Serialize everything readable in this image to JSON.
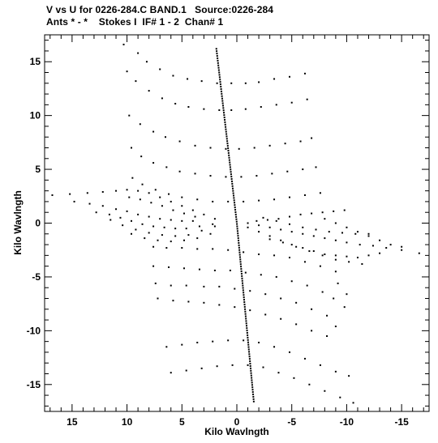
{
  "header": {
    "title_line1": "V vs U for 0226-284.C BAND.1   Source:0226-284",
    "title_line2": "Ants * - *    Stokes I  IF# 1 - 2  Chan# 1"
  },
  "chart_data": {
    "type": "scatter",
    "title": "V vs U for 0226-284.C BAND.1   Source:0226-284",
    "subtitle": "Ants * - *    Stokes I  IF# 1 - 2  Chan# 1",
    "xlabel": "Kilo Wavlngth",
    "ylabel": "Kilo Wavlngth",
    "xlim": [
      17.5,
      -17.5
    ],
    "ylim": [
      -17.5,
      17.5
    ],
    "x_reversed": true,
    "xticks": [
      15,
      10,
      5,
      0,
      -5,
      -10,
      -15
    ],
    "yticks": [
      15,
      10,
      5,
      0,
      -5,
      -10,
      -15
    ],
    "xtick_labels": [
      "15",
      "10",
      "5",
      "0",
      "-5",
      "-10",
      "-15"
    ],
    "ytick_labels": [
      "15",
      "10",
      "5",
      "0",
      "-5",
      "-10",
      "-15"
    ],
    "grid": false,
    "marker_color": "#000000",
    "series": [
      {
        "points": [
          [
            10.3,
            16.6
          ],
          [
            9.0,
            15.8
          ],
          [
            8.2,
            15.0
          ],
          [
            7.0,
            14.3
          ],
          [
            5.8,
            13.7
          ],
          [
            4.5,
            13.4
          ],
          [
            3.2,
            13.2
          ],
          [
            1.8,
            13.0
          ],
          [
            0.5,
            13.0
          ],
          [
            -0.8,
            13.0
          ],
          [
            -2.0,
            13.1
          ],
          [
            -3.4,
            13.4
          ],
          [
            -4.8,
            13.6
          ],
          [
            -6.2,
            13.9
          ],
          [
            10.0,
            14.1
          ],
          [
            9.2,
            13.2
          ],
          [
            8.0,
            12.3
          ],
          [
            6.8,
            11.6
          ],
          [
            5.6,
            11.1
          ],
          [
            4.4,
            10.8
          ],
          [
            3.0,
            10.6
          ],
          [
            1.6,
            10.5
          ],
          [
            0.5,
            10.5
          ],
          [
            -0.8,
            10.6
          ],
          [
            -2.2,
            10.8
          ],
          [
            -3.6,
            11.0
          ],
          [
            -5.0,
            11.2
          ],
          [
            -6.4,
            11.5
          ],
          [
            9.8,
            10.0
          ],
          [
            8.8,
            9.2
          ],
          [
            7.6,
            8.5
          ],
          [
            6.5,
            8.0
          ],
          [
            5.2,
            7.6
          ],
          [
            3.8,
            7.2
          ],
          [
            2.4,
            7.0
          ],
          [
            1.0,
            6.9
          ],
          [
            -0.2,
            6.9
          ],
          [
            -1.6,
            7.0
          ],
          [
            -3.0,
            7.2
          ],
          [
            -4.4,
            7.4
          ],
          [
            -5.8,
            7.6
          ],
          [
            -6.8,
            7.9
          ],
          [
            9.6,
            7.0
          ],
          [
            8.7,
            6.2
          ],
          [
            7.6,
            5.6
          ],
          [
            6.4,
            5.2
          ],
          [
            5.2,
            4.8
          ],
          [
            3.8,
            4.6
          ],
          [
            2.4,
            4.4
          ],
          [
            1.0,
            4.3
          ],
          [
            -0.4,
            4.3
          ],
          [
            -1.8,
            4.4
          ],
          [
            -3.2,
            4.6
          ],
          [
            -4.6,
            4.8
          ],
          [
            -6.0,
            5.0
          ],
          [
            -7.2,
            5.2
          ],
          [
            9.5,
            4.2
          ],
          [
            8.6,
            3.6
          ],
          [
            7.4,
            3.1
          ],
          [
            6.2,
            2.7
          ],
          [
            5.0,
            2.4
          ],
          [
            3.6,
            2.2
          ],
          [
            2.2,
            2.0
          ],
          [
            0.8,
            2.0
          ],
          [
            -0.6,
            2.0
          ],
          [
            -2.0,
            2.1
          ],
          [
            -3.4,
            2.2
          ],
          [
            -4.8,
            2.4
          ],
          [
            -6.2,
            2.6
          ],
          [
            -7.6,
            2.8
          ],
          [
            16.8,
            2.6
          ],
          [
            15.2,
            2.7
          ],
          [
            13.6,
            2.8
          ],
          [
            12.2,
            2.9
          ],
          [
            11.0,
            3.0
          ],
          [
            10.0,
            3.1
          ],
          [
            9.0,
            3.0
          ],
          [
            8.0,
            2.8
          ],
          [
            7.0,
            2.4
          ],
          [
            6.0,
            2.0
          ],
          [
            5.0,
            1.6
          ],
          [
            4.0,
            1.2
          ],
          [
            3.0,
            0.8
          ],
          [
            2.0,
            0.4
          ],
          [
            14.8,
            2.0
          ],
          [
            13.4,
            1.8
          ],
          [
            12.2,
            1.6
          ],
          [
            11.0,
            1.3
          ],
          [
            10.0,
            1.1
          ],
          [
            9.0,
            0.8
          ],
          [
            8.0,
            0.6
          ],
          [
            7.0,
            0.4
          ],
          [
            6.0,
            0.3
          ],
          [
            5.0,
            0.2
          ],
          [
            4.0,
            0.2
          ],
          [
            12.8,
            1.0
          ],
          [
            11.6,
            0.8
          ],
          [
            10.6,
            0.5
          ],
          [
            9.6,
            0.2
          ],
          [
            8.6,
            -0.1
          ],
          [
            7.6,
            -0.3
          ],
          [
            6.6,
            -0.4
          ],
          [
            5.6,
            -0.5
          ],
          [
            4.6,
            -0.5
          ],
          [
            3.4,
            -0.3
          ],
          [
            2.2,
            -0.1
          ],
          [
            11.5,
            0.3
          ],
          [
            10.4,
            -0.2
          ],
          [
            9.2,
            -0.6
          ],
          [
            8.0,
            -0.9
          ],
          [
            6.8,
            -1.1
          ],
          [
            5.6,
            -1.2
          ],
          [
            4.4,
            -1.1
          ],
          [
            3.2,
            -0.7
          ],
          [
            2.0,
            -0.3
          ],
          [
            9.8,
            2.4
          ],
          [
            8.8,
            2.2
          ],
          [
            7.8,
            1.9
          ],
          [
            6.8,
            1.6
          ],
          [
            5.8,
            1.2
          ],
          [
            4.8,
            0.9
          ],
          [
            3.8,
            0.6
          ],
          [
            9.6,
            -1.0
          ],
          [
            8.4,
            -1.4
          ],
          [
            7.2,
            -1.6
          ],
          [
            6.0,
            -1.7
          ],
          [
            4.8,
            -1.6
          ],
          [
            3.6,
            -1.4
          ],
          [
            2.4,
            -1.0
          ],
          [
            -1.0,
            0.0
          ],
          [
            -1.8,
            0.2
          ],
          [
            -2.8,
            0.3
          ],
          [
            -3.8,
            0.4
          ],
          [
            -4.8,
            0.6
          ],
          [
            -5.8,
            0.8
          ],
          [
            -6.8,
            0.9
          ],
          [
            -7.8,
            1.0
          ],
          [
            -8.8,
            1.1
          ],
          [
            -9.8,
            1.2
          ],
          [
            -1.0,
            -0.4
          ],
          [
            -2.0,
            -0.8
          ],
          [
            -3.0,
            -1.2
          ],
          [
            -4.0,
            -1.6
          ],
          [
            -5.0,
            -2.0
          ],
          [
            -6.0,
            -2.3
          ],
          [
            -7.0,
            -2.6
          ],
          [
            -8.0,
            -2.9
          ],
          [
            -9.0,
            -3.0
          ],
          [
            -10.0,
            -3.1
          ],
          [
            -11.0,
            -3.2
          ],
          [
            -12.0,
            -3.0
          ],
          [
            -13.0,
            -2.8
          ],
          [
            -2.0,
            -0.2
          ],
          [
            -3.0,
            -0.4
          ],
          [
            -4.0,
            -0.6
          ],
          [
            -5.0,
            -0.8
          ],
          [
            -6.0,
            -1.0
          ],
          [
            -7.0,
            -1.2
          ],
          [
            -8.0,
            -1.4
          ],
          [
            -9.0,
            -1.6
          ],
          [
            -10.0,
            -1.8
          ],
          [
            -11.2,
            -2.0
          ],
          [
            -12.4,
            -2.1
          ],
          [
            -13.6,
            -2.3
          ],
          [
            -15.0,
            -2.5
          ],
          [
            -16.6,
            -2.8
          ],
          [
            -3.0,
            -1.5
          ],
          [
            -4.2,
            -1.8
          ],
          [
            -5.4,
            -2.2
          ],
          [
            -6.6,
            -2.6
          ],
          [
            -7.8,
            -3.0
          ],
          [
            -9.0,
            -3.4
          ],
          [
            -10.2,
            -3.6
          ],
          [
            -11.4,
            -3.8
          ],
          [
            -2.4,
            0.5
          ],
          [
            -3.6,
            0.2
          ],
          [
            -4.8,
            -0.1
          ],
          [
            -6.0,
            -0.4
          ],
          [
            -7.2,
            -0.6
          ],
          [
            -8.4,
            -0.8
          ],
          [
            -9.6,
            -0.9
          ],
          [
            -10.8,
            -1.0
          ],
          [
            -12.0,
            -1.0
          ],
          [
            -8.0,
            0.4
          ],
          [
            -9.0,
            0.0
          ],
          [
            -10.0,
            -0.4
          ],
          [
            -11.0,
            -0.8
          ],
          [
            -12.0,
            -1.2
          ],
          [
            -13.0,
            -1.6
          ],
          [
            -14.0,
            -2.0
          ],
          [
            -15.0,
            -2.2
          ],
          [
            7.6,
            -2.2
          ],
          [
            6.4,
            -2.3
          ],
          [
            5.0,
            -2.3
          ],
          [
            3.6,
            -2.4
          ],
          [
            2.2,
            -2.4
          ],
          [
            0.8,
            -2.5
          ],
          [
            -0.6,
            -2.7
          ],
          [
            -2.0,
            -2.9
          ],
          [
            -3.4,
            -3.0
          ],
          [
            -4.8,
            -3.2
          ],
          [
            -6.2,
            -3.6
          ],
          [
            -7.6,
            -4.0
          ],
          [
            -9.0,
            -4.5
          ],
          [
            7.6,
            -4.0
          ],
          [
            6.2,
            -4.1
          ],
          [
            4.8,
            -4.2
          ],
          [
            3.4,
            -4.3
          ],
          [
            2.0,
            -4.4
          ],
          [
            0.6,
            -4.4
          ],
          [
            -0.8,
            -4.6
          ],
          [
            -2.2,
            -4.8
          ],
          [
            -3.6,
            -5.0
          ],
          [
            -5.0,
            -5.4
          ],
          [
            -6.4,
            -5.8
          ],
          [
            -7.8,
            -6.4
          ],
          [
            -8.8,
            -7.0
          ],
          [
            7.4,
            -5.6
          ],
          [
            6.0,
            -5.8
          ],
          [
            4.6,
            -5.8
          ],
          [
            3.0,
            -5.9
          ],
          [
            1.6,
            -5.9
          ],
          [
            0.2,
            -6.1
          ],
          [
            -1.2,
            -6.3
          ],
          [
            -2.6,
            -6.6
          ],
          [
            -4.0,
            -7.0
          ],
          [
            -5.4,
            -7.4
          ],
          [
            -6.8,
            -8.0
          ],
          [
            -8.2,
            -8.6
          ],
          [
            7.2,
            -7.0
          ],
          [
            5.8,
            -7.2
          ],
          [
            4.4,
            -7.3
          ],
          [
            3.0,
            -7.4
          ],
          [
            1.6,
            -7.6
          ],
          [
            0.2,
            -7.8
          ],
          [
            -1.2,
            -8.1
          ],
          [
            -2.6,
            -8.5
          ],
          [
            -4.0,
            -8.9
          ],
          [
            -5.4,
            -9.4
          ],
          [
            -6.8,
            -10.0
          ],
          [
            -8.2,
            -10.5
          ],
          [
            6.4,
            -11.5
          ],
          [
            5.0,
            -11.3
          ],
          [
            3.6,
            -11.1
          ],
          [
            2.2,
            -11.0
          ],
          [
            0.8,
            -10.9
          ],
          [
            -0.6,
            -10.9
          ],
          [
            -2.0,
            -11.1
          ],
          [
            -3.4,
            -11.5
          ],
          [
            -4.8,
            -12.0
          ],
          [
            -6.2,
            -12.6
          ],
          [
            -7.6,
            -13.2
          ],
          [
            -9.0,
            -13.8
          ],
          [
            6.0,
            -13.9
          ],
          [
            4.6,
            -13.7
          ],
          [
            3.2,
            -13.5
          ],
          [
            1.8,
            -13.3
          ],
          [
            0.4,
            -13.2
          ],
          [
            -1.0,
            -13.2
          ],
          [
            -2.4,
            -13.4
          ],
          [
            -3.8,
            -13.9
          ],
          [
            -5.2,
            -14.4
          ],
          [
            -6.6,
            -15.0
          ],
          [
            -8.0,
            -15.6
          ],
          [
            -9.4,
            -16.2
          ],
          [
            -10.6,
            -16.7
          ],
          [
            -9.2,
            -5.6
          ],
          [
            -10.0,
            -6.6
          ],
          [
            -9.8,
            -7.8
          ],
          [
            -9.0,
            -9.6
          ],
          [
            -10.2,
            -14.2
          ]
        ]
      }
    ]
  }
}
